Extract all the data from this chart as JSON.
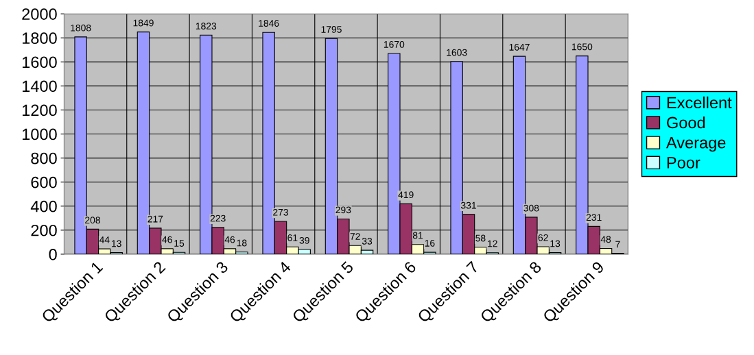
{
  "chart_data": {
    "type": "bar",
    "categories": [
      "Question 1",
      "Question 2",
      "Question 3",
      "Question 4",
      "Question 5",
      "Question 6",
      "Question 7",
      "Question 8",
      "Question 9"
    ],
    "series": [
      {
        "name": "Excellent",
        "color": "#9999ff",
        "values": [
          1808,
          1849,
          1823,
          1846,
          1795,
          1670,
          1603,
          1647,
          1650
        ]
      },
      {
        "name": "Good",
        "color": "#993366",
        "values": [
          208,
          217,
          223,
          273,
          293,
          419,
          331,
          308,
          231
        ]
      },
      {
        "name": "Average",
        "color": "#ffffcc",
        "values": [
          44,
          46,
          46,
          61,
          72,
          81,
          58,
          62,
          48
        ]
      },
      {
        "name": "Poor",
        "color": "#ccffff",
        "values": [
          13,
          15,
          18,
          39,
          33,
          16,
          12,
          13,
          7
        ]
      }
    ],
    "ylim": [
      0,
      2000
    ],
    "yticks": [
      0,
      200,
      400,
      600,
      800,
      1000,
      1200,
      1400,
      1600,
      1800,
      2000
    ],
    "grid": true,
    "legend": "right",
    "data_labels": true
  }
}
